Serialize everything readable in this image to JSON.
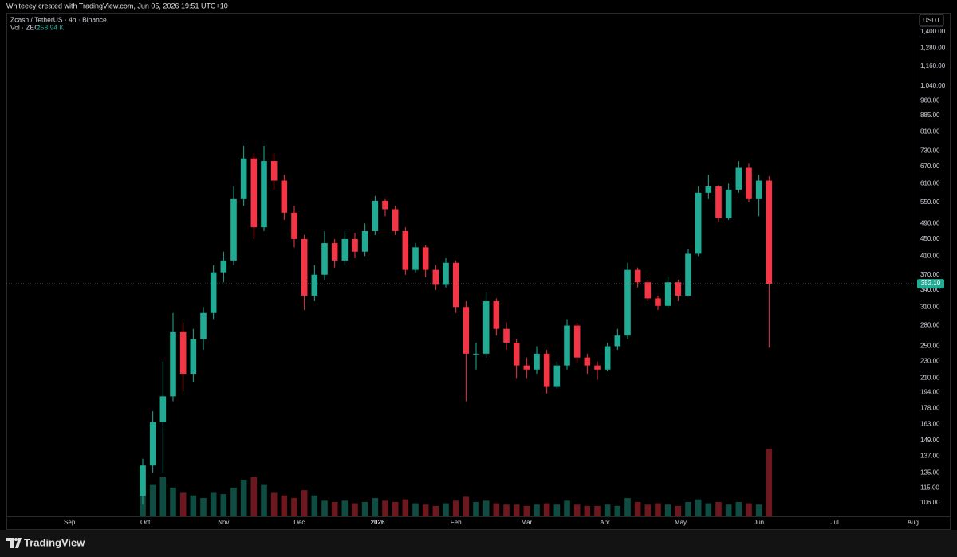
{
  "header": {
    "credit": "Whiteeey created with TradingView.com, Jun 05, 2026 19:51 UTC+10"
  },
  "footer": {
    "brand": "TradingView"
  },
  "chart_data": {
    "type": "candlestick",
    "title": "Zcash / TetherUS · 4h · Binance",
    "y_unit": "USDT",
    "volume_label": "Vol · ZEC",
    "volume_value_label": "258.94 K",
    "last_close_label": "352.10",
    "log_scale": true,
    "up_color": "#22ab94",
    "down_color": "#f23645",
    "x": [
      "2025-09-30",
      "2025-10-04",
      "2025-10-08",
      "2025-10-12",
      "2025-10-16",
      "2025-10-20",
      "2025-10-24",
      "2025-10-28",
      "2025-11-01",
      "2025-11-05",
      "2025-11-09",
      "2025-11-13",
      "2025-11-17",
      "2025-11-21",
      "2025-11-25",
      "2025-11-29",
      "2025-12-03",
      "2025-12-07",
      "2025-12-11",
      "2025-12-15",
      "2025-12-19",
      "2025-12-23",
      "2025-12-27",
      "2025-12-31",
      "2026-01-04",
      "2026-01-08",
      "2026-01-12",
      "2026-01-16",
      "2026-01-20",
      "2026-01-24",
      "2026-01-28",
      "2026-02-01",
      "2026-02-05",
      "2026-02-09",
      "2026-02-13",
      "2026-02-17",
      "2026-02-21",
      "2026-02-25",
      "2026-03-01",
      "2026-03-05",
      "2026-03-09",
      "2026-03-13",
      "2026-03-17",
      "2026-03-21",
      "2026-03-25",
      "2026-03-29",
      "2026-04-02",
      "2026-04-06",
      "2026-04-10",
      "2026-04-14",
      "2026-04-18",
      "2026-04-22",
      "2026-04-26",
      "2026-04-30",
      "2026-05-04",
      "2026-05-08",
      "2026-05-12",
      "2026-05-16",
      "2026-05-20",
      "2026-05-24",
      "2026-05-28",
      "2026-06-01",
      "2026-06-05"
    ],
    "open": [
      110,
      130,
      165,
      190,
      270,
      215,
      260,
      300,
      375,
      400,
      560,
      700,
      480,
      690,
      620,
      520,
      450,
      330,
      370,
      440,
      400,
      450,
      420,
      470,
      555,
      530,
      470,
      380,
      430,
      380,
      350,
      395,
      310,
      240,
      240,
      320,
      275,
      255,
      225,
      220,
      240,
      200,
      225,
      280,
      235,
      225,
      220,
      250,
      265,
      380,
      355,
      325,
      312,
      355,
      330,
      415,
      580,
      600,
      505,
      590,
      665,
      560,
      620
    ],
    "high": [
      135,
      175,
      230,
      300,
      285,
      275,
      310,
      390,
      420,
      600,
      750,
      720,
      750,
      720,
      640,
      540,
      460,
      390,
      470,
      450,
      470,
      465,
      490,
      570,
      560,
      540,
      480,
      440,
      435,
      390,
      405,
      400,
      320,
      255,
      335,
      325,
      285,
      260,
      235,
      250,
      245,
      230,
      290,
      285,
      240,
      230,
      255,
      275,
      395,
      385,
      360,
      330,
      365,
      360,
      425,
      600,
      640,
      605,
      610,
      690,
      680,
      640,
      635
    ],
    "low": [
      105,
      125,
      125,
      185,
      195,
      205,
      245,
      290,
      355,
      390,
      540,
      450,
      470,
      590,
      500,
      430,
      305,
      320,
      360,
      385,
      390,
      405,
      410,
      460,
      510,
      460,
      370,
      375,
      365,
      340,
      345,
      300,
      185,
      220,
      235,
      265,
      245,
      210,
      210,
      215,
      193,
      198,
      220,
      228,
      215,
      208,
      218,
      245,
      260,
      345,
      320,
      305,
      308,
      320,
      328,
      410,
      560,
      495,
      500,
      580,
      550,
      510,
      248
    ],
    "close": [
      130,
      165,
      190,
      270,
      215,
      260,
      300,
      375,
      400,
      560,
      700,
      480,
      690,
      620,
      520,
      450,
      330,
      370,
      440,
      400,
      450,
      420,
      470,
      555,
      530,
      470,
      380,
      430,
      380,
      350,
      395,
      310,
      240,
      240,
      320,
      275,
      255,
      225,
      220,
      240,
      200,
      225,
      280,
      235,
      225,
      220,
      250,
      265,
      380,
      355,
      325,
      312,
      355,
      330,
      415,
      580,
      600,
      505,
      590,
      665,
      560,
      620,
      352.1
    ],
    "volume": [
      180,
      120,
      150,
      110,
      90,
      80,
      70,
      90,
      85,
      110,
      140,
      150,
      120,
      90,
      80,
      70,
      100,
      80,
      60,
      55,
      60,
      50,
      55,
      70,
      60,
      55,
      65,
      50,
      45,
      40,
      50,
      60,
      75,
      55,
      60,
      50,
      45,
      45,
      40,
      45,
      50,
      45,
      60,
      45,
      40,
      40,
      45,
      40,
      70,
      55,
      45,
      50,
      45,
      40,
      55,
      65,
      50,
      55,
      45,
      55,
      50,
      45,
      258.94
    ],
    "xlim": [
      "2025-08-07",
      "2026-08-02"
    ],
    "xticks": [
      {
        "value": "2025-09-01",
        "label": "Sep"
      },
      {
        "value": "2025-10-01",
        "label": "Oct"
      },
      {
        "value": "2025-11-01",
        "label": "Nov"
      },
      {
        "value": "2025-12-01",
        "label": "Dec"
      },
      {
        "value": "2026-01-01",
        "label": "2026"
      },
      {
        "value": "2026-02-01",
        "label": "Feb"
      },
      {
        "value": "2026-03-01",
        "label": "Mar"
      },
      {
        "value": "2026-04-01",
        "label": "Apr"
      },
      {
        "value": "2026-05-01",
        "label": "May"
      },
      {
        "value": "2026-06-01",
        "label": "Jun"
      },
      {
        "value": "2026-07-01",
        "label": "Jul"
      },
      {
        "value": "2026-08-01",
        "label": "Aug"
      }
    ],
    "ylim": [
      98.4,
      1555
    ],
    "yticks": [
      {
        "value": 1400,
        "label": "1,400.00"
      },
      {
        "value": 1280,
        "label": "1,280.00"
      },
      {
        "value": 1160,
        "label": "1,160.00"
      },
      {
        "value": 1040,
        "label": "1,040.00"
      },
      {
        "value": 960,
        "label": "960.00"
      },
      {
        "value": 885,
        "label": "885.00"
      },
      {
        "value": 810,
        "label": "810.00"
      },
      {
        "value": 730,
        "label": "730.00"
      },
      {
        "value": 670,
        "label": "670.00"
      },
      {
        "value": 610,
        "label": "610.00"
      },
      {
        "value": 550,
        "label": "550.00"
      },
      {
        "value": 490,
        "label": "490.00"
      },
      {
        "value": 450,
        "label": "450.00"
      },
      {
        "value": 410,
        "label": "410.00"
      },
      {
        "value": 370,
        "label": "370.00"
      },
      {
        "value": 340,
        "label": "340.00"
      },
      {
        "value": 310,
        "label": "310.00"
      },
      {
        "value": 280,
        "label": "280.00"
      },
      {
        "value": 250,
        "label": "250.00"
      },
      {
        "value": 230,
        "label": "230.00"
      },
      {
        "value": 210,
        "label": "210.00"
      },
      {
        "value": 194,
        "label": "194.00"
      },
      {
        "value": 178,
        "label": "178.00"
      },
      {
        "value": 163,
        "label": "163.00"
      },
      {
        "value": 149,
        "label": "149.00"
      },
      {
        "value": 137,
        "label": "137.00"
      },
      {
        "value": 125,
        "label": "125.00"
      },
      {
        "value": 115,
        "label": "115.00"
      },
      {
        "value": 106,
        "label": "106.00"
      }
    ]
  }
}
